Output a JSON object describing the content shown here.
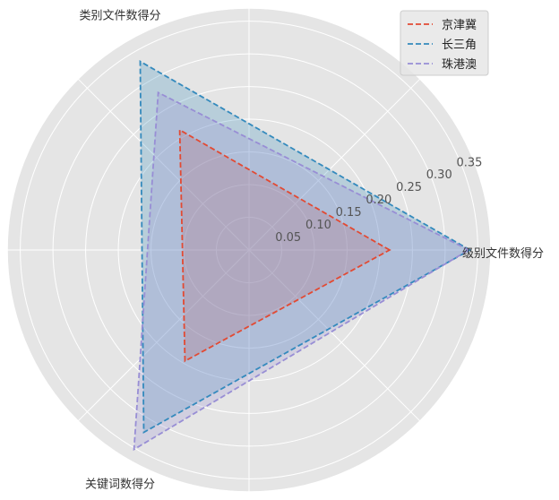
{
  "chart_data": {
    "type": "radar",
    "axes": [
      "级别文件数得分",
      "类别文件数得分",
      "关键词数得分"
    ],
    "rlim": [
      0,
      0.37
    ],
    "rticks": [
      "0.05",
      "0.10",
      "0.15",
      "0.20",
      "0.25",
      "0.30",
      "0.35"
    ],
    "rtick_values": [
      0.05,
      0.1,
      0.15,
      0.2,
      0.25,
      0.3,
      0.35
    ],
    "grid": true,
    "legend_position": "top-right",
    "series": [
      {
        "name": "京津冀",
        "color": "#e24a33",
        "values": [
          0.215,
          0.212,
          0.196
        ]
      },
      {
        "name": "长三角",
        "color": "#348abd",
        "values": [
          0.338,
          0.333,
          0.322
        ]
      },
      {
        "name": "珠港澳",
        "color": "#988ed5",
        "values": [
          0.336,
          0.278,
          0.352
        ]
      }
    ]
  }
}
